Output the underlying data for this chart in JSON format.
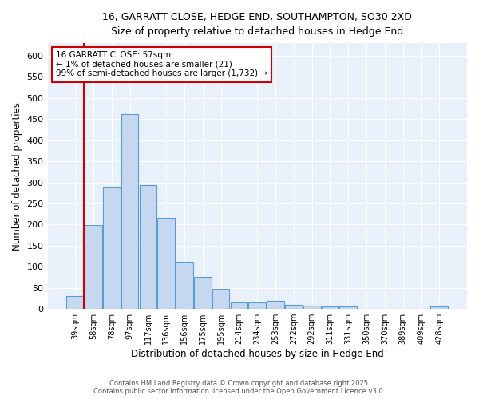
{
  "title_line1": "16, GARRATT CLOSE, HEDGE END, SOUTHAMPTON, SO30 2XD",
  "title_line2": "Size of property relative to detached houses in Hedge End",
  "bar_labels": [
    "39sqm",
    "58sqm",
    "78sqm",
    "97sqm",
    "117sqm",
    "136sqm",
    "156sqm",
    "175sqm",
    "195sqm",
    "214sqm",
    "234sqm",
    "253sqm",
    "272sqm",
    "292sqm",
    "311sqm",
    "331sqm",
    "350sqm",
    "370sqm",
    "389sqm",
    "409sqm",
    "428sqm"
  ],
  "bar_values": [
    30,
    198,
    290,
    462,
    293,
    216,
    112,
    75,
    47,
    15,
    15,
    20,
    10,
    8,
    5,
    5,
    0,
    0,
    0,
    0,
    5
  ],
  "bar_color": "#c5d8f0",
  "bar_edge_color": "#5b9bd5",
  "xlabel": "Distribution of detached houses by size in Hedge End",
  "ylabel": "Number of detached properties",
  "ylim": [
    0,
    630
  ],
  "yticks": [
    0,
    50,
    100,
    150,
    200,
    250,
    300,
    350,
    400,
    450,
    500,
    550,
    600
  ],
  "vline_color": "#cc0000",
  "annotation_title": "16 GARRATT CLOSE: 57sqm",
  "annotation_line1": "← 1% of detached houses are smaller (21)",
  "annotation_line2": "99% of semi-detached houses are larger (1,732) →",
  "annotation_box_color": "#cc0000",
  "footer_line1": "Contains HM Land Registry data © Crown copyright and database right 2025.",
  "footer_line2": "Contains public sector information licensed under the Open Government Licence v3.0.",
  "plot_bg_color": "#e8f0fa",
  "fig_bg_color": "#ffffff",
  "grid_color": "#ffffff"
}
